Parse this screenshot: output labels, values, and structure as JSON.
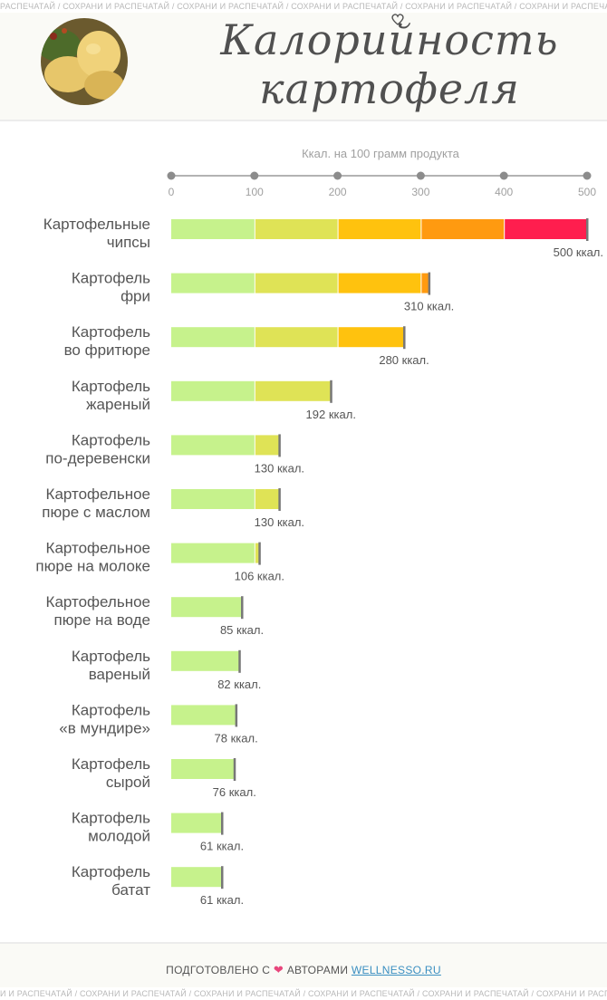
{
  "watermark": "РАСПЕЧАТАЙ / СОХРАНИ И РАСПЕЧАТАЙ / СОХРАНИ И РАСПЕЧАТАЙ / СОХРАНИ И РАСПЕЧАТАЙ / СОХРАНИ И РАСПЕЧАТАЙ / СОХРАНИ И РАСПЕЧАТАЙ / СОХРАНИ И РАСПЕЧАТАЙ",
  "watermark_bottom": "И И РАСПЕЧАТАЙ / СОХРАНИ И РАСПЕЧАТАЙ / СОХРАНИ И РАСПЕЧАТАЙ / СОХРАНИ И РАСПЕЧАТАЙ / СОХРАНИ И РАСПЕЧАТАЙ / СОХРАНИ И РАСПЕЧАТАЙ / СОХРАНИ И",
  "header": {
    "title_line1": "Калорийность",
    "title_line2": "картофеля",
    "photo_icon": "potato-photo"
  },
  "footer": {
    "prefix": "ПОДГОТОВЛЕНО С",
    "heart": "❤",
    "middle": "АВТОРАМИ",
    "site": "WELLNESSO.RU"
  },
  "colors": {
    "segments": [
      "#c6f28c",
      "#dfe356",
      "#ffc20e",
      "#ff9a10",
      "#ff1e4e"
    ],
    "end_marker": "#777777",
    "accent_heart": "#e8467c",
    "link": "#3a8fc1"
  },
  "chart_data": {
    "type": "bar",
    "orientation": "horizontal",
    "title": "Ккал. на 100 грамм продукта",
    "xlim": [
      0,
      500
    ],
    "ticks": [
      0,
      100,
      200,
      300,
      400,
      500
    ],
    "value_suffix": " ккал.",
    "categories": [
      [
        "Картофельные",
        "чипсы"
      ],
      [
        "Картофель",
        "фри"
      ],
      [
        "Картофель",
        "во фритюре"
      ],
      [
        "Картофель",
        "жареный"
      ],
      [
        "Картофель",
        "по-деревенски"
      ],
      [
        "Картофельное",
        "пюре с маслом"
      ],
      [
        "Картофельное",
        "пюре на молоке"
      ],
      [
        "Картофельное",
        "пюре на воде"
      ],
      [
        "Картофель",
        "вареный"
      ],
      [
        "Картофель",
        "«в мундире»"
      ],
      [
        "Картофель",
        "сырой"
      ],
      [
        "Картофель",
        "молодой"
      ],
      [
        "Картофель",
        "батат"
      ]
    ],
    "values": [
      500,
      310,
      280,
      192,
      130,
      130,
      106,
      85,
      82,
      78,
      76,
      61,
      61
    ]
  }
}
